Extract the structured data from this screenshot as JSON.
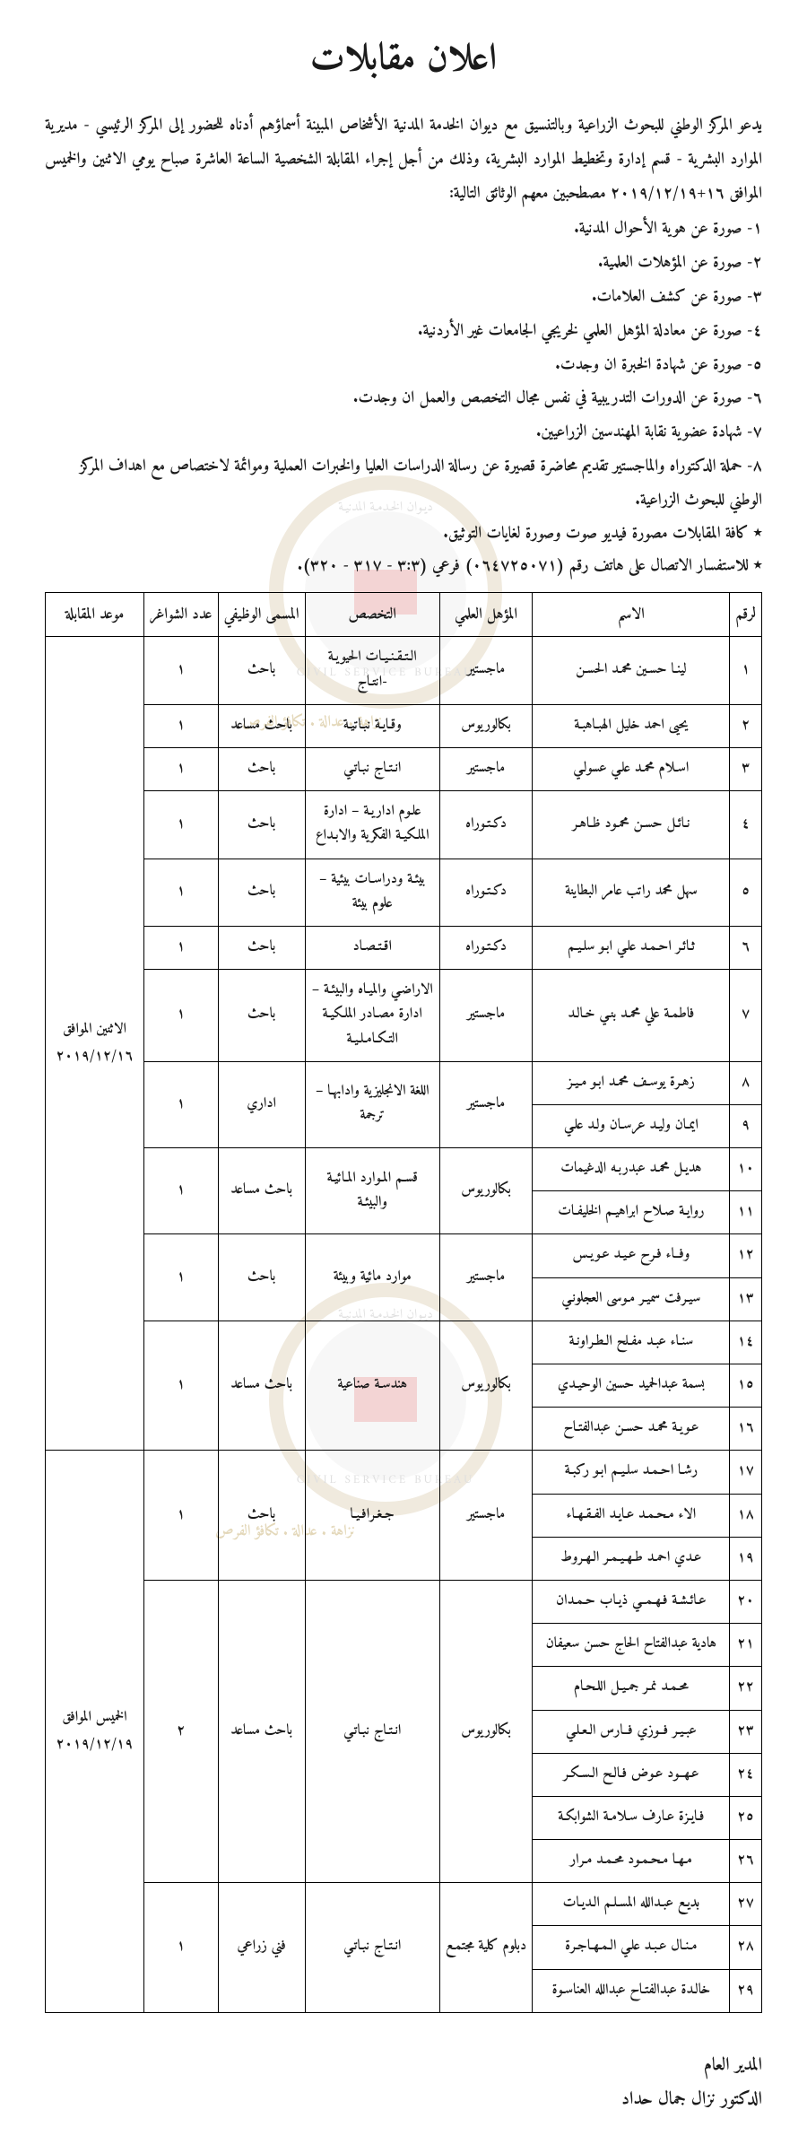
{
  "title": "اعلان مقابلات",
  "intro": "يدعو المركز الوطني للبحوث الزراعية وبالتنسيق مع ديوان الخدمة المدنية الأشخاص المبينة أسماؤهم أدناه للحضور إلى المركز الرئيسي - مديرية الموارد البشرية - قسم إدارة وتخطيط الموارد البشرية، وذلك من أجل إجراء المقابلة الشخصية الساعة العاشرة صباح يومي الاثنين والخميس الموافق ١٦+٢٠١٩/١٢/١٩ مصطحبين معهم الوثائق التالية:",
  "requirements": [
    "١- صورة عن هوية الأحوال المدنية.",
    "٢- صورة عن المؤهلات العلمية.",
    "٣- صورة عن كشف العلامات.",
    "٤- صورة عن معادلة المؤهل العلمي لخريجي الجامعات غير الأردنية.",
    "٥- صورة عن شهادة الخبرة ان وجدت.",
    "٦- صورة عن الدورات التدريبية في نفس مجال التخصص والعمل ان وجدت.",
    "٧- شهادة عضوية نقابة المهندسين الزراعيين.",
    "٨- حملة الدكتوراه والماجستير تقديم محاضرة قصيرة عن رسالة الدراسات العليا والخبرات العملية وموائمة لاختصاص مع اهداف المركز الوطني للبحوث الزراعية."
  ],
  "notes": [
    "كافة المقابلات مصورة فيديو صوت وصورة لغايات التوثيق.",
    "للاستفسار الاتصال على هاتف رقم (٠٦٤٧٢٥٠٧١) فرعي (٣:٣ - ٣١٧ - ٣٢٠)."
  ],
  "columns": [
    "لرقم",
    "الاسم",
    "المؤهل العلمي",
    "التخصص",
    "المسمى الوظيفي",
    "عدد الشواغر",
    "موعد المقابلة"
  ],
  "dates": {
    "mon": "الاثنين الموافق ٢٠١٩/١٢/١٦",
    "thu": "الخميس الموافق ٢٠١٩/١٢/١٩"
  },
  "rows": [
    {
      "n": "١",
      "name": "لينـا حسـين محمـد الحسـن",
      "deg": "ماجستير",
      "spec": "الـتـقـنـيـات الحيويـة -انتـاج",
      "job": "باحث",
      "vac": "١"
    },
    {
      "n": "٢",
      "name": "يحيى احمد خليل الهبـاهبـة",
      "deg": "بكالوريوس",
      "spec": "وقـايـة نبـاتيـة",
      "job": "باحث مساعد",
      "vac": "١"
    },
    {
      "n": "٣",
      "name": "اسـلام محمـد علـي عسولـي",
      "deg": "ماجستير",
      "spec": "انـتـاج نبـاتـي",
      "job": "باحث",
      "vac": "١"
    },
    {
      "n": "٤",
      "name": "نـائـل حسـن محمـود ظـاهـر",
      "deg": "دكـتـوراه",
      "spec": "علـوم اداريـة – ادارة الملكيـة الفكرية والابـداع",
      "job": "باحث",
      "vac": "١"
    },
    {
      "n": "٥",
      "name": "سهل محمد راتب عامر البطاينة",
      "deg": "دكـتـوراه",
      "spec": "بيئـة ودراسـات بيئية – علوم بيئة",
      "job": "باحث",
      "vac": "١"
    },
    {
      "n": "٦",
      "name": "ثـائـر احـمـد علـي ابـو سلـيـم",
      "deg": "دكـتـوراه",
      "spec": "اقـتـصـاد",
      "job": "باحث",
      "vac": "١"
    },
    {
      "n": "٧",
      "name": "فاطمـة علي محمـد بنـي خـالـد",
      "deg": "ماجستير",
      "spec": "الاراضـي والميـاه والبيئـة – ادارة مصـادر الملكيـة التـكـامـلـيـة",
      "job": "باحث",
      "vac": "١"
    },
    {
      "n": "٨",
      "name": "زهـرة يوسـف محمـد ابـو مـيـز",
      "deg": "ماجستير",
      "spec": "اللغة الانجليزية وادابهـا – ترجمة",
      "job": "اداري",
      "vac": "١"
    },
    {
      "n": "٩",
      "name": "ايمـان وليـد عرسـان ولـد علـي"
    },
    {
      "n": "١٠",
      "name": "هديـل محمـد عبدربـه الدغيمات",
      "deg": "بكالوريوس",
      "spec": "قسـم المـوارد المـائيـة والبيئـة",
      "job": "باحث مساعد",
      "vac": "١"
    },
    {
      "n": "١١",
      "name": "روايـة صـلاح ابراهيـم الخليفـات"
    },
    {
      "n": "١٢",
      "name": "وفــاء فـرح عـيـد عـويـس",
      "deg": "ماجستير",
      "spec": "موارد مائية وبيئة",
      "job": "باحث",
      "vac": "١"
    },
    {
      "n": "١٣",
      "name": "سيـرفت سميـر مـوسى العجلونـي"
    },
    {
      "n": "١٤",
      "name": "سنـاء عبـد مفـلح الـطـراونـة",
      "deg": "بكالوريوس",
      "spec": "هندسـة صناعية",
      "job": "باحث مساعد",
      "vac": "١"
    },
    {
      "n": "١٥",
      "name": "بسمة عبدالحميد حسين الوحيـدي"
    },
    {
      "n": "١٦",
      "name": "عـويـة محمـد حسـن عبدالفتـاح"
    },
    {
      "n": "١٧",
      "name": "رشـا احـمـد سلـيـم ابـو ركبـة",
      "deg": "ماجستير",
      "spec": "جـغـرافـيـا",
      "job": "باحث",
      "vac": "١"
    },
    {
      "n": "١٨",
      "name": "الاء مـحـمـد عـايـد الفـقـهـاء"
    },
    {
      "n": "١٩",
      "name": "عـدي احمـد طـهـيـمـر الـهـروط"
    },
    {
      "n": "٢٠",
      "name": "عـائـشـة فـهـمــي ذيـاب حـمـدان",
      "deg": "بكالوريوس",
      "spec": "انـتـاج نبـاتـي",
      "job": "باحث مساعد",
      "vac": "٢"
    },
    {
      "n": "٢١",
      "name": "هادية عبدالفتاح الحاج حسن سعيفان"
    },
    {
      "n": "٢٢",
      "name": "محـمـد نمـر جمـيـل اللـحـام"
    },
    {
      "n": "٢٣",
      "name": "عبـيـر فــوزي فــارس الـعـلـي"
    },
    {
      "n": "٢٤",
      "name": "عـهــود عـوض فـالـح الـسـكـر"
    },
    {
      "n": "٢٥",
      "name": "فـايـزة عـارف سـلامـة الشوابكـة"
    },
    {
      "n": "٢٦",
      "name": "مـهـا مـحـمـود محـمـد مـرار"
    },
    {
      "n": "٢٧",
      "name": "بديـع عبـدالله المسـلـم الـديـات",
      "deg": "دبلوم كلية مجتمـع",
      "spec": "انـتـاج نبـاتـي",
      "job": "فني زراعي",
      "vac": "١"
    },
    {
      "n": "٢٨",
      "name": "مـنـال عـبـد علـي الـمـهـاجـرة"
    },
    {
      "n": "٢٩",
      "name": "خالـدة عبدالفتـاح عبدالله العناسـوة"
    }
  ],
  "signature": {
    "role": "المدير العام",
    "name": "الدكتور نزال جمال حداد"
  },
  "watermark": {
    "arabic": "ديـوان الخـدمـة المدنيـة",
    "english": "CIVIL SERVICE BUREAU",
    "caption": "نزاهة . عدالة . تكافؤ الفرص"
  }
}
